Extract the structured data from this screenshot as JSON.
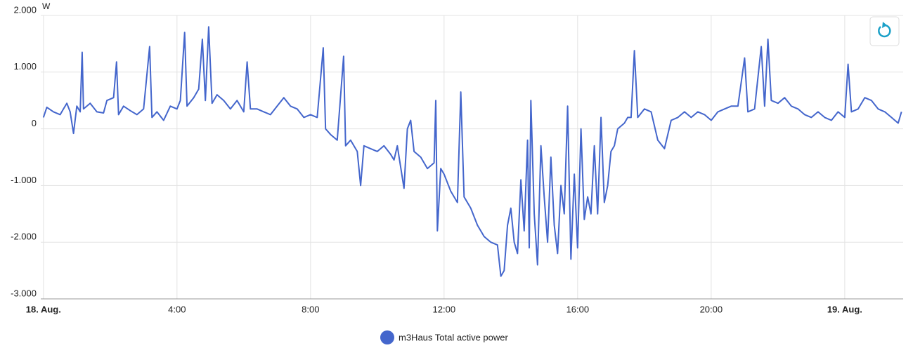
{
  "chart_data": {
    "type": "line",
    "y_unit": "W",
    "x": [
      0,
      0.1,
      0.3,
      0.5,
      0.6,
      0.7,
      0.8,
      0.9,
      1.0,
      1.1,
      1.16,
      1.2,
      1.4,
      1.6,
      1.8,
      1.9,
      2.1,
      2.19,
      2.25,
      2.4,
      2.6,
      2.8,
      3.0,
      3.18,
      3.25,
      3.4,
      3.6,
      3.8,
      4.0,
      4.1,
      4.23,
      4.3,
      4.5,
      4.65,
      4.76,
      4.85,
      4.95,
      5.05,
      5.2,
      5.4,
      5.6,
      5.8,
      6.0,
      6.1,
      6.2,
      6.4,
      6.6,
      6.8,
      7.0,
      7.2,
      7.4,
      7.6,
      7.8,
      8.0,
      8.2,
      8.38,
      8.45,
      8.6,
      8.8,
      8.99,
      9.05,
      9.2,
      9.4,
      9.5,
      9.6,
      9.8,
      10.0,
      10.2,
      10.4,
      10.5,
      10.6,
      10.8,
      10.9,
      11.0,
      11.1,
      11.3,
      11.5,
      11.7,
      11.75,
      11.8,
      11.9,
      12.0,
      12.2,
      12.4,
      12.5,
      12.6,
      12.8,
      13.0,
      13.2,
      13.4,
      13.6,
      13.7,
      13.8,
      13.9,
      14.0,
      14.1,
      14.2,
      14.3,
      14.4,
      14.5,
      14.55,
      14.6,
      14.7,
      14.8,
      14.9,
      15.0,
      15.1,
      15.2,
      15.3,
      15.4,
      15.5,
      15.6,
      15.7,
      15.8,
      15.9,
      16.0,
      16.1,
      16.2,
      16.3,
      16.4,
      16.5,
      16.6,
      16.7,
      16.8,
      16.9,
      17.0,
      17.1,
      17.2,
      17.4,
      17.5,
      17.6,
      17.7,
      17.8,
      18.0,
      18.2,
      18.4,
      18.6,
      18.8,
      19.0,
      19.2,
      19.4,
      19.6,
      19.8,
      20.0,
      20.2,
      20.4,
      20.6,
      20.8,
      21.0,
      21.1,
      21.3,
      21.5,
      21.6,
      21.7,
      21.8,
      22.0,
      22.2,
      22.4,
      22.6,
      22.8,
      23.0,
      23.2,
      23.4,
      23.6,
      23.8,
      24.0,
      24.1,
      24.2,
      24.4,
      24.6,
      24.8,
      25.0,
      25.2,
      25.4,
      25.6,
      25.7
    ],
    "series": [
      {
        "name": "m3Haus Total active power",
        "color": "#4466cc",
        "values": [
          200,
          380,
          300,
          250,
          350,
          450,
          300,
          -80,
          400,
          300,
          1350,
          350,
          450,
          300,
          280,
          500,
          550,
          1180,
          250,
          400,
          320,
          250,
          350,
          1450,
          200,
          300,
          150,
          400,
          350,
          500,
          1700,
          400,
          550,
          700,
          1580,
          500,
          1800,
          450,
          600,
          500,
          350,
          500,
          300,
          1180,
          350,
          350,
          300,
          250,
          400,
          550,
          400,
          350,
          200,
          250,
          200,
          1430,
          0,
          -100,
          -200,
          1280,
          -300,
          -200,
          -400,
          -1000,
          -300,
          -350,
          -400,
          -300,
          -450,
          -550,
          -300,
          -1050,
          0,
          150,
          -400,
          -500,
          -700,
          -600,
          500,
          -1800,
          -700,
          -800,
          -1100,
          -1300,
          650,
          -1200,
          -1400,
          -1700,
          -1900,
          -2000,
          -2050,
          -2600,
          -2500,
          -1700,
          -1400,
          -2000,
          -2200,
          -900,
          -1800,
          -200,
          -2100,
          500,
          -1500,
          -2400,
          -300,
          -1200,
          -2000,
          -500,
          -1700,
          -2200,
          -1000,
          -1500,
          400,
          -2300,
          -800,
          -2100,
          0,
          -1600,
          -1200,
          -1500,
          -300,
          -1500,
          200,
          -1300,
          -1000,
          -400,
          -300,
          0,
          100,
          200,
          200,
          1380,
          200,
          350,
          300,
          -200,
          -350,
          150,
          200,
          300,
          200,
          300,
          250,
          150,
          300,
          350,
          400,
          400,
          1250,
          300,
          350,
          1450,
          400,
          1580,
          500,
          450,
          550,
          400,
          350,
          250,
          200,
          300,
          200,
          150,
          300,
          200,
          1140,
          300,
          350,
          550,
          500,
          350,
          300,
          200,
          100,
          300
        ]
      }
    ],
    "xlim": [
      -0.08,
      25.75
    ],
    "ylim": [
      -3000,
      2000
    ],
    "xticks": [
      {
        "value": 0,
        "label": "18. Aug."
      },
      {
        "value": 4,
        "label": "4:00"
      },
      {
        "value": 8,
        "label": "8:00"
      },
      {
        "value": 12,
        "label": "12:00"
      },
      {
        "value": 16,
        "label": "16:00"
      },
      {
        "value": 20,
        "label": "20:00"
      },
      {
        "value": 24,
        "label": "19. Aug."
      }
    ],
    "yticks": [
      {
        "value": 2000,
        "label": "2.000"
      },
      {
        "value": 1000,
        "label": "1.000"
      },
      0,
      {
        "value": -1000,
        "label": "-1.000"
      },
      {
        "value": -2000,
        "label": "-2.000"
      },
      {
        "value": -3000,
        "label": "-3.000"
      }
    ],
    "grid": true
  }
}
